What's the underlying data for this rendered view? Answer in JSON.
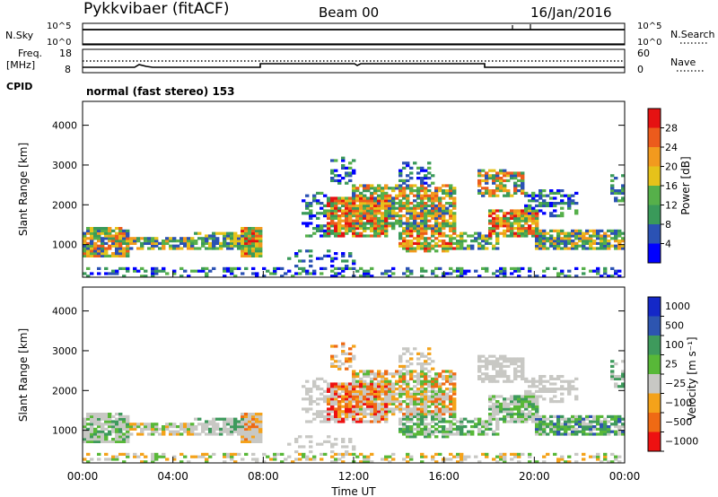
{
  "header": {
    "site": "Pykkvibaer (fitACF)",
    "beam": "Beam 00",
    "date": "16/Jan/2016"
  },
  "noise_panel": {
    "left_label": "N.Sky",
    "right_label": "N.Search",
    "left_ticks": [
      "10^5",
      "10^0"
    ],
    "right_ticks": [
      "10^5",
      "10^0"
    ]
  },
  "freq_panel": {
    "left_label_top": "Freq.",
    "left_label_bottom": "[MHz]",
    "right_label": "Nave",
    "left_ticks": [
      "18",
      "8"
    ],
    "right_ticks": [
      "60",
      "0"
    ]
  },
  "cpid": {
    "label": "CPID",
    "value": "normal (fast stereo) 153"
  },
  "colors": {
    "power": [
      "#0000ff",
      "#2b52b4",
      "#3a9a5a",
      "#56b04a",
      "#e6c21a",
      "#f29a1e",
      "#ec5b1c",
      "#e51212"
    ],
    "velocity": [
      "#ee1111",
      "#ef6a14",
      "#f4a21a",
      "#c8c8c4",
      "#58b838",
      "#3e9a5c",
      "#2d55b0",
      "#1428c8"
    ]
  },
  "chart_data": [
    {
      "type": "heatmap",
      "name": "power",
      "ylabel": "Slant Range [km]",
      "ylim": [
        180,
        4600
      ],
      "yticks": [
        "1000",
        "2000",
        "3000",
        "4000"
      ],
      "xlim": [
        0,
        24
      ],
      "colorbar": {
        "label": "Power [dB]",
        "ticks": [
          "4",
          "8",
          "12",
          "16",
          "20",
          "24",
          "28"
        ],
        "range": [
          0,
          32
        ]
      }
    },
    {
      "type": "heatmap",
      "name": "velocity",
      "ylabel": "Slant Range [km]",
      "ylim": [
        180,
        4600
      ],
      "yticks": [
        "1000",
        "2000",
        "3000",
        "4000"
      ],
      "xlim": [
        0,
        24
      ],
      "xticks": [
        "00:00",
        "04:00",
        "08:00",
        "12:00",
        "16:00",
        "20:00",
        "00:00"
      ],
      "xlabel": "Time UT",
      "colorbar": {
        "label": "Velocity [m s⁻¹]",
        "ticks": [
          "1000",
          "500",
          "100",
          "25",
          "−25",
          "−100",
          "−500",
          "−1000"
        ]
      }
    }
  ]
}
